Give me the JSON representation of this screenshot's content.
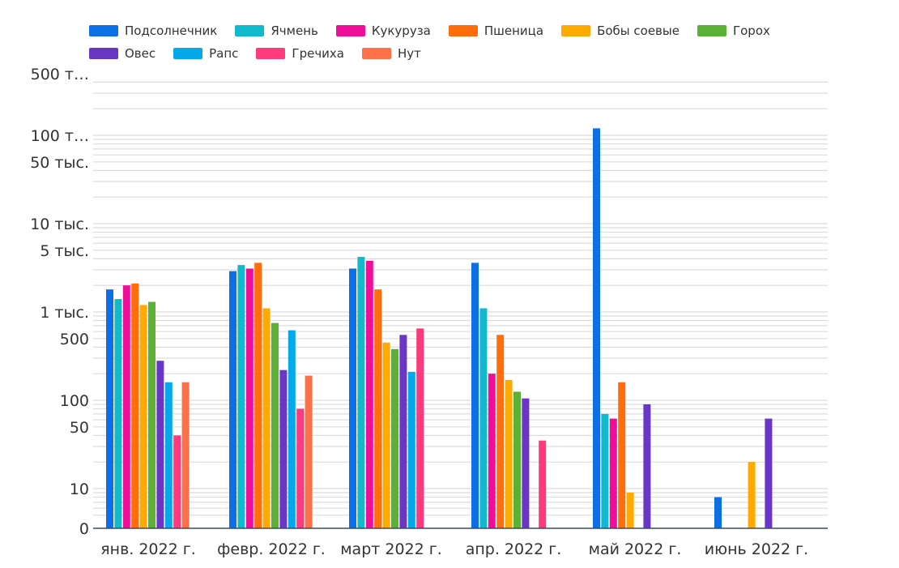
{
  "chart_data": {
    "type": "bar",
    "scale": "log",
    "title": "",
    "xlabel": "",
    "ylabel": "",
    "legend_position": "top",
    "grid": true,
    "ylim": [
      0,
      500000
    ],
    "categories": [
      "янв. 2022 г.",
      "февр. 2022 г.",
      "март 2022 г.",
      "апр. 2022 г.",
      "май 2022 г.",
      "июнь 2022 г."
    ],
    "y_ticks": [
      {
        "value": 500000,
        "label": "500 т…"
      },
      {
        "value": 100000,
        "label": "100 т…"
      },
      {
        "value": 50000,
        "label": "50 тыс."
      },
      {
        "value": 10000,
        "label": "10 тыс."
      },
      {
        "value": 5000,
        "label": "5 тыс."
      },
      {
        "value": 1000,
        "label": "1 тыс."
      },
      {
        "value": 500,
        "label": "500"
      },
      {
        "value": 100,
        "label": "100"
      },
      {
        "value": 50,
        "label": "50"
      },
      {
        "value": 10,
        "label": "10"
      },
      {
        "value": 0,
        "label": "0"
      }
    ],
    "series": [
      {
        "name": "Подсолнечник",
        "color": "#0d6fe6",
        "values": [
          1800,
          2900,
          3100,
          3600,
          120000,
          8
        ]
      },
      {
        "name": "Ячмень",
        "color": "#10b9cc",
        "values": [
          1400,
          3400,
          4200,
          1100,
          70,
          null
        ]
      },
      {
        "name": "Кукуруза",
        "color": "#ee0e97",
        "values": [
          2000,
          3100,
          3800,
          200,
          62,
          null
        ]
      },
      {
        "name": "Пшеница",
        "color": "#ff6d0c",
        "values": [
          2100,
          3600,
          1800,
          550,
          160,
          null
        ]
      },
      {
        "name": "Бобы соевые",
        "color": "#ffaa00",
        "values": [
          1200,
          1100,
          450,
          170,
          9,
          20
        ]
      },
      {
        "name": "Горох",
        "color": "#5bb135",
        "values": [
          1300,
          750,
          380,
          125,
          null,
          null
        ]
      },
      {
        "name": "Овес",
        "color": "#6a36c4",
        "values": [
          280,
          220,
          550,
          105,
          90,
          62
        ]
      },
      {
        "name": "Рапс",
        "color": "#05a8e9",
        "values": [
          160,
          620,
          210,
          null,
          null,
          null
        ]
      },
      {
        "name": "Гречиха",
        "color": "#fc3a7c",
        "values": [
          40,
          80,
          650,
          35,
          null,
          null
        ]
      },
      {
        "name": "Нут",
        "color": "#fd7048",
        "values": [
          160,
          190,
          null,
          null,
          null,
          null
        ]
      }
    ]
  }
}
